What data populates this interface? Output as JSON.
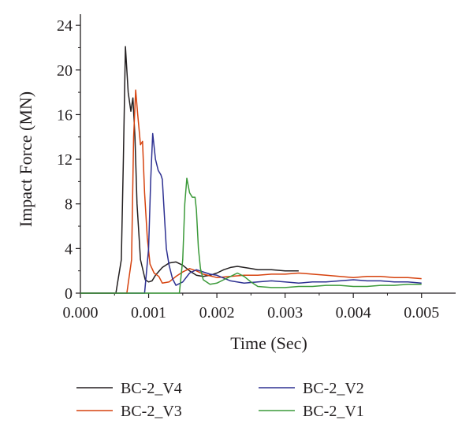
{
  "chart_data": {
    "type": "line",
    "title": "",
    "xlabel": "Time (Sec)",
    "ylabel": "Impact Force (MN)",
    "xlim": [
      0,
      0.0055
    ],
    "ylim": [
      0,
      25
    ],
    "xticks": [
      0,
      0.001,
      0.002,
      0.003,
      0.004,
      0.005
    ],
    "xtick_labels": [
      "0.000",
      "0.001",
      "0.002",
      "0.003",
      "0.004",
      "0.005"
    ],
    "yticks": [
      0,
      4,
      8,
      12,
      16,
      20,
      24
    ],
    "ytick_labels": [
      "0",
      "4",
      "8",
      "12",
      "16",
      "20",
      "24"
    ],
    "grid": false,
    "legend_position": "bottom",
    "series": [
      {
        "name": "BC-2_V4",
        "color": "#231f20",
        "x": [
          0.00052,
          0.0006,
          0.00063,
          0.00066,
          0.0007,
          0.00074,
          0.00077,
          0.0008,
          0.00083,
          0.00088,
          0.00095,
          0.001,
          0.00105,
          0.0011,
          0.0012,
          0.0013,
          0.0014,
          0.0015,
          0.0016,
          0.0017,
          0.0018,
          0.0019,
          0.002,
          0.0021,
          0.0022,
          0.0023,
          0.0024,
          0.0025,
          0.0026,
          0.0028,
          0.003,
          0.0032
        ],
        "y": [
          0,
          3,
          12,
          22.1,
          18,
          16.3,
          17.5,
          14,
          8,
          3,
          1.2,
          1.0,
          1.1,
          1.6,
          2.3,
          2.7,
          2.8,
          2.5,
          2.0,
          1.6,
          1.5,
          1.6,
          1.8,
          2.1,
          2.3,
          2.4,
          2.3,
          2.2,
          2.1,
          2.1,
          2.0,
          2.0
        ]
      },
      {
        "name": "BC-2_V3",
        "color": "#d6420e",
        "x": [
          0.00068,
          0.00075,
          0.00078,
          0.00081,
          0.00084,
          0.00088,
          0.00091,
          0.00094,
          0.00098,
          0.00102,
          0.00108,
          0.00115,
          0.0012,
          0.0013,
          0.0014,
          0.0015,
          0.0016,
          0.0017,
          0.0018,
          0.002,
          0.0022,
          0.0024,
          0.0026,
          0.0028,
          0.003,
          0.0032,
          0.0034,
          0.0036,
          0.0038,
          0.004,
          0.0042,
          0.0044,
          0.0046,
          0.0048,
          0.005
        ],
        "y": [
          0,
          3,
          14,
          18.2,
          16,
          13.3,
          13.6,
          9,
          5,
          2.6,
          1.8,
          1.5,
          0.9,
          1.0,
          1.5,
          1.9,
          2.2,
          2.0,
          1.7,
          1.4,
          1.5,
          1.6,
          1.6,
          1.7,
          1.7,
          1.8,
          1.7,
          1.6,
          1.5,
          1.4,
          1.5,
          1.5,
          1.4,
          1.4,
          1.3
        ]
      },
      {
        "name": "BC-2_V2",
        "color": "#2e3192",
        "x": [
          0.00094,
          0.001,
          0.00103,
          0.00106,
          0.0011,
          0.00114,
          0.00118,
          0.0012,
          0.00123,
          0.00126,
          0.0013,
          0.00135,
          0.0014,
          0.0015,
          0.0016,
          0.0017,
          0.0018,
          0.0019,
          0.002,
          0.0022,
          0.0024,
          0.0026,
          0.0028,
          0.003,
          0.0032,
          0.0034,
          0.0036,
          0.0038,
          0.004,
          0.0042,
          0.0044,
          0.0046,
          0.0048,
          0.005
        ],
        "y": [
          0,
          4,
          10,
          14.3,
          12,
          11,
          10.6,
          10.2,
          7,
          4,
          2.5,
          1.3,
          0.7,
          1.0,
          1.8,
          2.1,
          1.9,
          1.7,
          1.6,
          1.1,
          0.9,
          1.0,
          1.1,
          1.0,
          0.9,
          1.0,
          1.0,
          1.1,
          1.2,
          1.1,
          1.1,
          1.0,
          1.0,
          0.9
        ]
      },
      {
        "name": "BC-2_V1",
        "color": "#3c9a3a",
        "x": [
          0.00145,
          0.0015,
          0.00153,
          0.00156,
          0.0016,
          0.00164,
          0.00168,
          0.0017,
          0.00173,
          0.00176,
          0.0018,
          0.0019,
          0.002,
          0.0021,
          0.0022,
          0.0023,
          0.0024,
          0.0025,
          0.0026,
          0.0028,
          0.003,
          0.0032,
          0.0034,
          0.0036,
          0.0038,
          0.004,
          0.0042,
          0.0044,
          0.0046,
          0.0048,
          0.005
        ],
        "y": [
          0,
          3,
          8,
          10.3,
          9,
          8.6,
          8.6,
          7.5,
          4,
          2.2,
          1.2,
          0.8,
          0.9,
          1.2,
          1.5,
          1.8,
          1.5,
          1.0,
          0.6,
          0.5,
          0.5,
          0.6,
          0.6,
          0.7,
          0.7,
          0.6,
          0.6,
          0.7,
          0.7,
          0.8,
          0.8
        ]
      }
    ]
  }
}
